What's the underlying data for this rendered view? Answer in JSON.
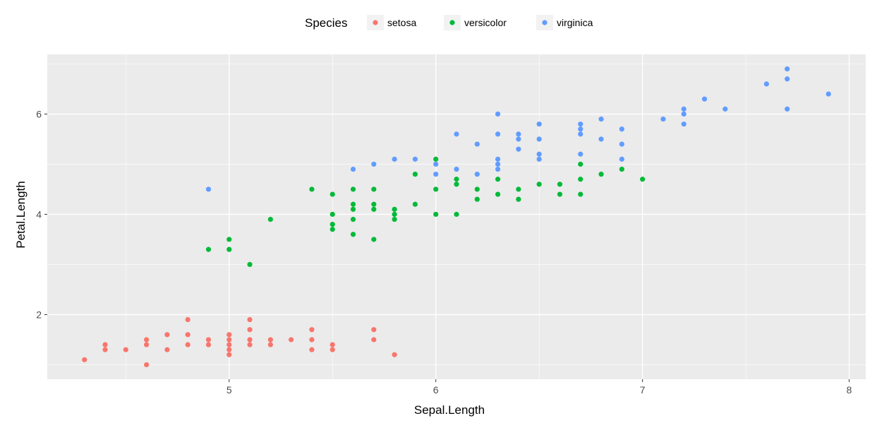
{
  "chart_data": {
    "type": "scatter",
    "xlabel": "Sepal.Length",
    "ylabel": "Petal.Length",
    "xlim": [
      4.12,
      8.08
    ],
    "ylim": [
      0.71,
      7.19
    ],
    "xticks": [
      5,
      6,
      7,
      8
    ],
    "yticks": [
      2,
      4,
      6
    ],
    "grid": true,
    "legend": {
      "title": "Species",
      "position": "top"
    },
    "series": [
      {
        "name": "setosa",
        "color": "#F8766D",
        "points": [
          [
            4.3,
            1.1
          ],
          [
            4.4,
            1.3
          ],
          [
            4.4,
            1.4
          ],
          [
            4.5,
            1.3
          ],
          [
            4.6,
            1.0
          ],
          [
            4.6,
            1.4
          ],
          [
            4.6,
            1.5
          ],
          [
            4.7,
            1.3
          ],
          [
            4.7,
            1.6
          ],
          [
            4.8,
            1.4
          ],
          [
            4.8,
            1.6
          ],
          [
            4.8,
            1.9
          ],
          [
            4.9,
            1.4
          ],
          [
            4.9,
            1.5
          ],
          [
            5.0,
            1.2
          ],
          [
            5.0,
            1.3
          ],
          [
            5.0,
            1.4
          ],
          [
            5.0,
            1.5
          ],
          [
            5.0,
            1.6
          ],
          [
            5.1,
            1.4
          ],
          [
            5.1,
            1.5
          ],
          [
            5.1,
            1.7
          ],
          [
            5.1,
            1.9
          ],
          [
            5.2,
            1.4
          ],
          [
            5.2,
            1.5
          ],
          [
            5.3,
            1.5
          ],
          [
            5.4,
            1.3
          ],
          [
            5.4,
            1.5
          ],
          [
            5.4,
            1.7
          ],
          [
            5.5,
            1.3
          ],
          [
            5.5,
            1.4
          ],
          [
            5.7,
            1.5
          ],
          [
            5.7,
            1.7
          ],
          [
            5.8,
            1.2
          ]
        ]
      },
      {
        "name": "versicolor",
        "color": "#00BA38",
        "points": [
          [
            4.9,
            3.3
          ],
          [
            5.0,
            3.3
          ],
          [
            5.0,
            3.5
          ],
          [
            5.1,
            3.0
          ],
          [
            5.2,
            3.9
          ],
          [
            5.4,
            4.5
          ],
          [
            5.5,
            3.7
          ],
          [
            5.5,
            3.8
          ],
          [
            5.5,
            4.0
          ],
          [
            5.5,
            4.4
          ],
          [
            5.6,
            3.6
          ],
          [
            5.6,
            3.9
          ],
          [
            5.6,
            4.1
          ],
          [
            5.6,
            4.2
          ],
          [
            5.6,
            4.5
          ],
          [
            5.7,
            3.5
          ],
          [
            5.7,
            4.1
          ],
          [
            5.7,
            4.2
          ],
          [
            5.7,
            4.5
          ],
          [
            5.8,
            3.9
          ],
          [
            5.8,
            4.0
          ],
          [
            5.8,
            4.1
          ],
          [
            5.9,
            4.2
          ],
          [
            5.9,
            4.8
          ],
          [
            6.0,
            4.0
          ],
          [
            6.0,
            4.5
          ],
          [
            6.0,
            5.1
          ],
          [
            6.1,
            4.0
          ],
          [
            6.1,
            4.6
          ],
          [
            6.1,
            4.7
          ],
          [
            6.2,
            4.3
          ],
          [
            6.2,
            4.5
          ],
          [
            6.3,
            4.4
          ],
          [
            6.3,
            4.7
          ],
          [
            6.4,
            4.3
          ],
          [
            6.4,
            4.5
          ],
          [
            6.5,
            4.6
          ],
          [
            6.6,
            4.4
          ],
          [
            6.6,
            4.6
          ],
          [
            6.7,
            4.4
          ],
          [
            6.7,
            4.7
          ],
          [
            6.7,
            5.0
          ],
          [
            6.8,
            4.8
          ],
          [
            6.9,
            4.9
          ],
          [
            7.0,
            4.7
          ]
        ]
      },
      {
        "name": "virginica",
        "color": "#619CFF",
        "points": [
          [
            4.9,
            4.5
          ],
          [
            5.6,
            4.9
          ],
          [
            5.7,
            5.0
          ],
          [
            5.8,
            5.1
          ],
          [
            5.9,
            5.1
          ],
          [
            6.0,
            4.8
          ],
          [
            6.0,
            5.0
          ],
          [
            6.1,
            4.9
          ],
          [
            6.1,
            5.6
          ],
          [
            6.2,
            4.8
          ],
          [
            6.2,
            5.4
          ],
          [
            6.3,
            4.9
          ],
          [
            6.3,
            5.0
          ],
          [
            6.3,
            5.1
          ],
          [
            6.3,
            5.6
          ],
          [
            6.3,
            6.0
          ],
          [
            6.4,
            5.3
          ],
          [
            6.4,
            5.5
          ],
          [
            6.4,
            5.6
          ],
          [
            6.5,
            5.1
          ],
          [
            6.5,
            5.2
          ],
          [
            6.5,
            5.5
          ],
          [
            6.5,
            5.8
          ],
          [
            6.7,
            5.2
          ],
          [
            6.7,
            5.6
          ],
          [
            6.7,
            5.7
          ],
          [
            6.7,
            5.8
          ],
          [
            6.8,
            5.5
          ],
          [
            6.8,
            5.9
          ],
          [
            6.9,
            5.1
          ],
          [
            6.9,
            5.4
          ],
          [
            6.9,
            5.7
          ],
          [
            7.1,
            5.9
          ],
          [
            7.2,
            5.8
          ],
          [
            7.2,
            6.0
          ],
          [
            7.2,
            6.1
          ],
          [
            7.3,
            6.3
          ],
          [
            7.4,
            6.1
          ],
          [
            7.6,
            6.6
          ],
          [
            7.7,
            6.1
          ],
          [
            7.7,
            6.7
          ],
          [
            7.7,
            6.9
          ],
          [
            7.9,
            6.4
          ]
        ]
      }
    ]
  }
}
